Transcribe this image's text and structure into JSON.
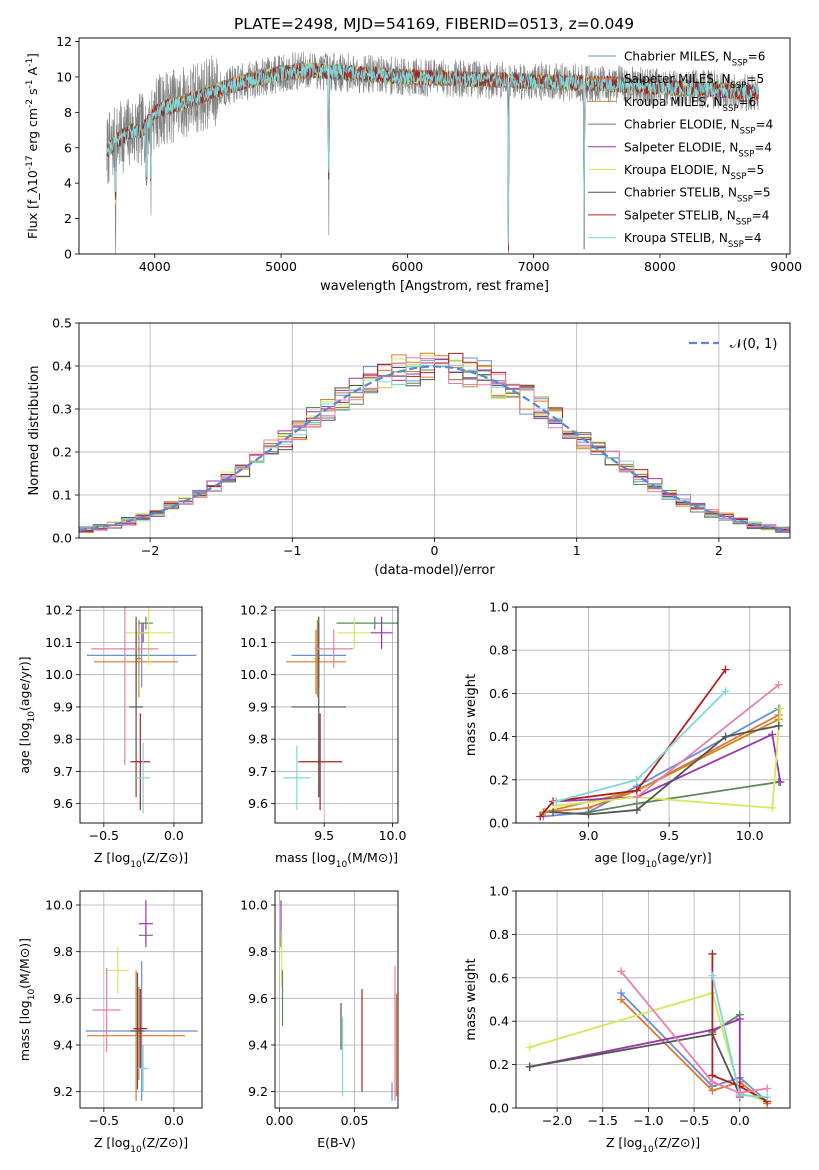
{
  "title": "PLATE=2498, MJD=54169, FIBERID=0513, z=0.049",
  "series_colors": {
    "Chabrier MILES": "#6a8fd6",
    "Salpeter MILES": "#e0752e",
    "Kroupa MILES": "#c58a2a",
    "Chabrier ELODIE": "#5a8a5a",
    "Salpeter ELODIE": "#9b35b0",
    "Kroupa ELODIE": "#d4e85a",
    "Chabrier STELIB": "#555555",
    "Salpeter STELIB": "#b02020",
    "Kroupa STELIB": "#7dd8dc",
    "data": "#808080",
    "pink": "#e87fb0",
    "normal": "#5b86d6"
  },
  "chart_data": [
    {
      "id": "spectrum",
      "type": "line",
      "xlabel": "wavelength [Angstrom, rest frame]",
      "ylabel": "Flux [f_λ10^{-17} erg cm^{-2} s^{-1} A^{-1}]",
      "xlim": [
        3400,
        9030
      ],
      "ylim": [
        0,
        12.2
      ],
      "xticks": [
        "4000",
        "5000",
        "6000",
        "7000",
        "8000",
        "9000"
      ],
      "yticks": [
        "0",
        "2",
        "4",
        "6",
        "8",
        "10",
        "12"
      ],
      "grid": false,
      "legend_position": "right",
      "legend": [
        {
          "model": "Chabrier MILES",
          "nssp": "6"
        },
        {
          "model": "Salpeter MILES",
          "nssp": "5"
        },
        {
          "model": "Kroupa MILES",
          "nssp": "6"
        },
        {
          "model": "Chabrier ELODIE",
          "nssp": "4"
        },
        {
          "model": "Salpeter ELODIE",
          "nssp": "4"
        },
        {
          "model": "Kroupa ELODIE",
          "nssp": "5"
        },
        {
          "model": "Chabrier STELIB",
          "nssp": "5"
        },
        {
          "model": "Salpeter STELIB",
          "nssp": "4"
        },
        {
          "model": "Kroupa STELIB",
          "nssp": "4"
        }
      ],
      "continuum": {
        "x": [
          3620,
          3700,
          3800,
          3900,
          4000,
          4100,
          4200,
          4400,
          4600,
          4800,
          5000,
          5200,
          5400,
          5600,
          5800,
          6000,
          6200,
          6400,
          6600,
          6800,
          7000,
          7200,
          7400,
          7600,
          7800,
          8000,
          8200,
          8400,
          8600,
          8780
        ],
        "y": [
          5.8,
          6.4,
          6.9,
          7.0,
          8.0,
          8.3,
          8.5,
          9.0,
          9.5,
          9.9,
          10.2,
          10.4,
          10.3,
          10.2,
          10.1,
          10.0,
          9.95,
          9.9,
          9.85,
          9.8,
          9.75,
          9.7,
          9.65,
          9.6,
          9.5,
          9.4,
          9.35,
          9.3,
          9.2,
          9.1
        ]
      },
      "absorption_dips": [
        {
          "x": 3690,
          "depth": 5.5
        },
        {
          "x": 3934,
          "depth": 5.0
        },
        {
          "x": 3969,
          "depth": 4.5
        },
        {
          "x": 5378,
          "depth": 10.0
        },
        {
          "x": 6800,
          "depth": 9.8
        },
        {
          "x": 7400,
          "depth": 9.5
        }
      ]
    },
    {
      "id": "residuals",
      "type": "histogram",
      "xlabel": "(data-model)/error",
      "ylabel": "Normed distribution",
      "xlim": [
        -2.5,
        2.5
      ],
      "ylim": [
        0,
        0.5
      ],
      "xticks": [
        "−2",
        "−1",
        "0",
        "1",
        "2"
      ],
      "yticks": [
        "0.0",
        "0.1",
        "0.2",
        "0.3",
        "0.4",
        "0.5"
      ],
      "grid": true,
      "legend_position": "top-right",
      "normal_label": "𝒩(0, 1)",
      "bin_width": 0.1
    },
    {
      "id": "age-vs-Z",
      "type": "scatter",
      "xlabel": "Z [log10(Z/Z⊙)]",
      "ylabel": "age [log10(age/yr)]",
      "xlim": [
        -0.67,
        0.2
      ],
      "ylim": [
        9.54,
        10.21
      ],
      "xticks": [
        "−0.5",
        "0.0"
      ],
      "yticks": [
        "9.6",
        "9.7",
        "9.8",
        "9.9",
        "10.0",
        "10.1",
        "10.2"
      ],
      "grid": true,
      "points": [
        {
          "series": "Chabrier MILES",
          "x": -0.23,
          "y": 10.06,
          "xerr": 0.39,
          "yerr": 0.1
        },
        {
          "series": "Salpeter MILES",
          "x": -0.27,
          "y": 10.04,
          "xerr": 0.3,
          "yerr": 0.1
        },
        {
          "series": "Kroupa MILES",
          "x": -0.25,
          "y": 10.05,
          "xerr": 0.02,
          "yerr": 0.12
        },
        {
          "series": "Chabrier ELODIE",
          "x": -0.2,
          "y": 10.16,
          "xerr": 0.05,
          "yerr": 0.02
        },
        {
          "series": "Salpeter ELODIE",
          "x": -0.22,
          "y": 10.13,
          "xerr": 0.04,
          "yerr": 0.03
        },
        {
          "series": "Kroupa ELODIE",
          "x": -0.18,
          "y": 10.13,
          "xerr": 0.17,
          "yerr": 0.1
        },
        {
          "series": "Chabrier STELIB",
          "x": -0.27,
          "y": 9.9,
          "xerr": 0.05,
          "yerr": 0.28
        },
        {
          "series": "Salpeter STELIB",
          "x": -0.24,
          "y": 9.73,
          "xerr": 0.07,
          "yerr": 0.15
        },
        {
          "series": "Kroupa STELIB",
          "x": -0.22,
          "y": 9.68,
          "xerr": 0.05,
          "yerr": 0.11
        },
        {
          "series": "pink",
          "x": -0.35,
          "y": 10.08,
          "xerr": 0.24,
          "yerr": 0.36
        }
      ]
    },
    {
      "id": "age-vs-mass",
      "type": "scatter",
      "xlabel": "mass [log10(M/M⊙)]",
      "ylabel": "",
      "xlim": [
        9.14,
        10.04
      ],
      "ylim": [
        9.54,
        10.21
      ],
      "xticks": [
        "9.5",
        "10.0"
      ],
      "yticks": [
        "9.6",
        "9.7",
        "9.8",
        "9.9",
        "10.0",
        "10.1",
        "10.2"
      ],
      "grid": true,
      "points": [
        {
          "series": "Chabrier MILES",
          "x": 9.46,
          "y": 10.06,
          "xerr": 0.2,
          "yerr": 0.1
        },
        {
          "series": "Salpeter MILES",
          "x": 9.44,
          "y": 10.04,
          "xerr": 0.22,
          "yerr": 0.1
        },
        {
          "series": "Kroupa MILES",
          "x": 9.45,
          "y": 10.05,
          "xerr": 0.02,
          "yerr": 0.12
        },
        {
          "series": "Chabrier ELODIE",
          "x": 9.87,
          "y": 10.16,
          "xerr": 0.28,
          "yerr": 0.02
        },
        {
          "series": "Salpeter ELODIE",
          "x": 9.92,
          "y": 10.13,
          "xerr": 0.08,
          "yerr": 0.05
        },
        {
          "series": "Kroupa ELODIE",
          "x": 9.72,
          "y": 10.13,
          "xerr": 0.12,
          "yerr": 0.05
        },
        {
          "series": "Chabrier STELIB",
          "x": 9.46,
          "y": 9.9,
          "xerr": 0.2,
          "yerr": 0.28
        },
        {
          "series": "Salpeter STELIB",
          "x": 9.47,
          "y": 9.73,
          "xerr": 0.16,
          "yerr": 0.15
        },
        {
          "series": "Kroupa STELIB",
          "x": 9.3,
          "y": 9.68,
          "xerr": 0.1,
          "yerr": 0.1
        },
        {
          "series": "pink",
          "x": 9.57,
          "y": 10.08,
          "xerr": 0.14,
          "yerr": 0.06
        }
      ]
    },
    {
      "id": "weight-vs-age",
      "type": "line",
      "xlabel": "age [log10(age/yr)]",
      "ylabel": "mass weight",
      "xlim": [
        8.55,
        10.25
      ],
      "ylim": [
        0,
        1
      ],
      "xticks": [
        "9.0",
        "9.5",
        "10.0"
      ],
      "yticks": [
        "0.0",
        "0.2",
        "0.4",
        "0.6",
        "0.8",
        "1.0"
      ],
      "grid": true,
      "series": [
        {
          "name": "Chabrier MILES",
          "x": [
            8.72,
            9.0,
            9.3,
            10.18
          ],
          "y": [
            0.03,
            0.05,
            0.17,
            0.53
          ]
        },
        {
          "name": "Salpeter MILES",
          "x": [
            8.73,
            9.0,
            9.3,
            10.18
          ],
          "y": [
            0.05,
            0.07,
            0.15,
            0.5
          ]
        },
        {
          "name": "Kroupa MILES",
          "x": [
            8.72,
            9.3,
            10.18
          ],
          "y": [
            0.05,
            0.15,
            0.48
          ]
        },
        {
          "name": "Chabrier ELODIE",
          "x": [
            9.0,
            9.3,
            10.18
          ],
          "y": [
            0.05,
            0.09,
            0.19
          ]
        },
        {
          "name": "Salpeter ELODIE",
          "x": [
            8.8,
            9.3,
            10.14,
            10.19
          ],
          "y": [
            0.1,
            0.12,
            0.41,
            0.19
          ]
        },
        {
          "name": "Kroupa ELODIE",
          "x": [
            8.8,
            9.3,
            10.14,
            10.19
          ],
          "y": [
            0.08,
            0.12,
            0.07,
            0.53
          ]
        },
        {
          "name": "Chabrier STELIB",
          "x": [
            8.78,
            9.0,
            9.3,
            9.85,
            10.18
          ],
          "y": [
            0.05,
            0.04,
            0.06,
            0.4,
            0.45
          ]
        },
        {
          "name": "Salpeter STELIB",
          "x": [
            8.7,
            8.78,
            9.3,
            9.85
          ],
          "y": [
            0.03,
            0.1,
            0.15,
            0.71
          ]
        },
        {
          "name": "Kroupa STELIB",
          "x": [
            8.8,
            9.3,
            9.85
          ],
          "y": [
            0.1,
            0.2,
            0.61
          ]
        },
        {
          "name": "pink",
          "x": [
            9.3,
            10.18
          ],
          "y": [
            0.12,
            0.64
          ]
        }
      ]
    },
    {
      "id": "mass-vs-Z",
      "type": "scatter",
      "xlabel": "Z [log10(Z/Z⊙)]",
      "ylabel": "mass [log10(M/M⊙)]",
      "xlim": [
        -0.67,
        0.2
      ],
      "ylim": [
        9.13,
        10.06
      ],
      "xticks": [
        "−0.5",
        "0.0"
      ],
      "yticks": [
        "9.2",
        "9.4",
        "9.6",
        "9.8",
        "10.0"
      ],
      "grid": true,
      "points": [
        {
          "series": "Chabrier MILES",
          "x": -0.23,
          "y": 9.46,
          "xerr": 0.4,
          "yerr": 0.3
        },
        {
          "series": "Salpeter MILES",
          "x": -0.27,
          "y": 9.44,
          "xerr": 0.35,
          "yerr": 0.28
        },
        {
          "series": "Kroupa MILES",
          "x": -0.25,
          "y": 9.45,
          "xerr": 0.02,
          "yerr": 0.2
        },
        {
          "series": "Chabrier ELODIE",
          "x": -0.2,
          "y": 9.87,
          "xerr": 0.05,
          "yerr": 0.03
        },
        {
          "series": "Salpeter ELODIE",
          "x": -0.2,
          "y": 9.92,
          "xerr": 0.05,
          "yerr": 0.1
        },
        {
          "series": "Kroupa ELODIE",
          "x": -0.4,
          "y": 9.72,
          "xerr": 0.08,
          "yerr": 0.1
        },
        {
          "series": "Chabrier STELIB",
          "x": -0.26,
          "y": 9.46,
          "xerr": 0.05,
          "yerr": 0.25
        },
        {
          "series": "Salpeter STELIB",
          "x": -0.24,
          "y": 9.47,
          "xerr": 0.05,
          "yerr": 0.17
        },
        {
          "series": "Kroupa STELIB",
          "x": -0.22,
          "y": 9.3,
          "xerr": 0.04,
          "yerr": 0.1
        },
        {
          "series": "pink",
          "x": -0.48,
          "y": 9.55,
          "xerr": 0.1,
          "yerr": 0.18
        }
      ]
    },
    {
      "id": "mass-vs-EBV",
      "type": "scatter",
      "xlabel": "E(B-V)",
      "ylabel": "",
      "xlim": [
        -0.003,
        0.079
      ],
      "ylim": [
        9.13,
        10.06
      ],
      "xticks": [
        "0.00",
        "0.05"
      ],
      "yticks": [
        "9.2",
        "9.4",
        "9.6",
        "9.8",
        "10.0"
      ],
      "grid": true,
      "points": [
        {
          "series": "Salpeter ELODIE",
          "x": 0.001,
          "y": 9.92,
          "yerr": 0.1
        },
        {
          "series": "Kroupa ELODIE",
          "x": 0.0015,
          "y": 9.77,
          "yerr": 0.12
        },
        {
          "series": "Chabrier ELODIE",
          "x": 0.002,
          "y": 9.6,
          "yerr": 0.12
        },
        {
          "series": "Chabrier STELIB",
          "x": 0.041,
          "y": 9.48,
          "yerr": 0.1
        },
        {
          "series": "Kroupa STELIB",
          "x": 0.042,
          "y": 9.35,
          "yerr": 0.17
        },
        {
          "series": "Salpeter STELIB",
          "x": 0.055,
          "y": 9.42,
          "yerr": 0.22
        },
        {
          "series": "pink",
          "x": 0.077,
          "y": 9.45,
          "yerr": 0.29
        },
        {
          "series": "Salpeter MILES",
          "x": 0.078,
          "y": 9.4,
          "yerr": 0.22
        },
        {
          "series": "Chabrier MILES",
          "x": 0.075,
          "y": 9.2,
          "yerr": 0.04
        }
      ]
    },
    {
      "id": "weight-vs-Z",
      "type": "line",
      "xlabel": "Z [log10(Z/Z⊙)]",
      "ylabel": "mass weight",
      "xlim": [
        -2.45,
        0.55
      ],
      "ylim": [
        0,
        1
      ],
      "xticks": [
        "−2.0",
        "−1.5",
        "−1.0",
        "−0.5",
        "0.0"
      ],
      "yticks": [
        "0.0",
        "0.2",
        "0.4",
        "0.6",
        "0.8",
        "1.0"
      ],
      "grid": true,
      "series": [
        {
          "name": "Chabrier MILES",
          "x": [
            -1.3,
            -0.3,
            0.0,
            0.3
          ],
          "y": [
            0.53,
            0.1,
            0.14,
            0.03
          ]
        },
        {
          "name": "Salpeter MILES",
          "x": [
            -1.3,
            -0.3,
            0.0,
            0.3
          ],
          "y": [
            0.5,
            0.08,
            0.12,
            0.02
          ]
        },
        {
          "name": "Chabrier ELODIE",
          "x": [
            -0.3,
            0.0
          ],
          "y": [
            0.35,
            0.43
          ]
        },
        {
          "name": "Salpeter ELODIE",
          "x": [
            -2.3,
            -0.3,
            0.0,
            0.0
          ],
          "y": [
            0.19,
            0.36,
            0.41,
            0.05
          ]
        },
        {
          "name": "Kroupa ELODIE",
          "x": [
            -2.3,
            -0.3,
            0.0,
            0.3
          ],
          "y": [
            0.28,
            0.53,
            0.07,
            0.03
          ]
        },
        {
          "name": "Chabrier STELIB",
          "x": [
            -2.3,
            -0.3,
            0.0
          ],
          "y": [
            0.19,
            0.34,
            0.06
          ]
        },
        {
          "name": "Salpeter STELIB",
          "x": [
            -0.3,
            -0.3,
            0.0,
            0.3
          ],
          "y": [
            0.71,
            0.15,
            0.1,
            0.03
          ]
        },
        {
          "name": "Kroupa STELIB",
          "x": [
            -0.3,
            0.0,
            0.3
          ],
          "y": [
            0.61,
            0.06,
            0.05
          ]
        },
        {
          "name": "pink",
          "x": [
            -1.3,
            -0.3,
            0.0,
            0.3
          ],
          "y": [
            0.63,
            0.12,
            0.07,
            0.09
          ]
        }
      ]
    }
  ]
}
